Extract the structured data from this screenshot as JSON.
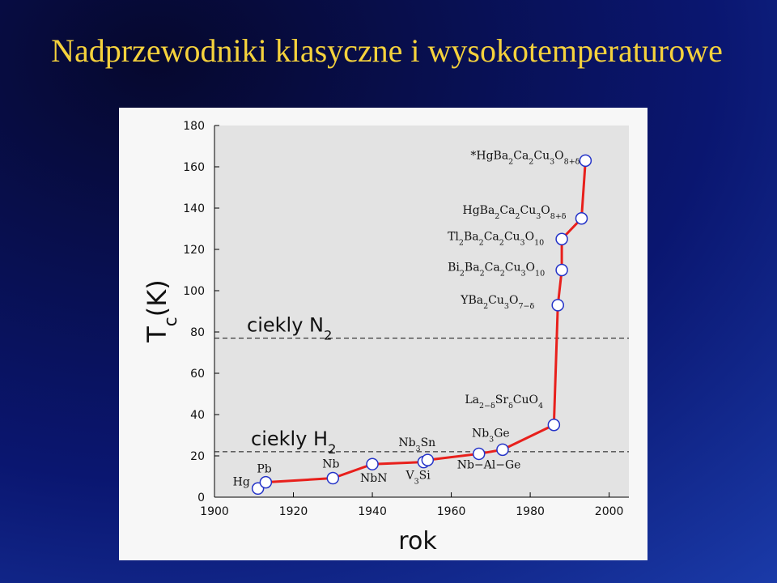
{
  "title": "Nadprzewodniki klasyczne i wysokotemperaturowe",
  "chart_data": {
    "type": "line",
    "x_label": "rok",
    "y_label": [
      "T",
      "c",
      "(K)"
    ],
    "xlim": [
      1900,
      2005
    ],
    "xticks": [
      1900,
      1920,
      1940,
      1960,
      1980,
      2000
    ],
    "ylim": [
      0,
      180
    ],
    "yticks": [
      0,
      20,
      40,
      60,
      80,
      100,
      120,
      140,
      160,
      180
    ],
    "series": [
      {
        "color": "#e8201c",
        "x": [
          1911,
          1913,
          1930,
          1940,
          1953,
          1954,
          1967,
          1973,
          1986,
          1987,
          1988,
          1988,
          1993,
          1994
        ],
        "values": [
          4.2,
          7.2,
          9.2,
          16,
          17,
          18,
          21,
          23,
          35,
          93,
          110,
          125,
          135,
          163
        ],
        "point_labels": [
          [
            "Hg"
          ],
          [
            "Pb"
          ],
          [
            "Nb"
          ],
          [
            "NbN"
          ],
          [
            "V",
            "3",
            "Si"
          ],
          [
            "Nb",
            "3",
            "Sn"
          ],
          [
            "Nb−Al−Ge"
          ],
          [
            "Nb",
            "3",
            "Ge"
          ],
          [
            "La",
            "2−δ",
            "Sr",
            "δ",
            "CuO",
            "4"
          ],
          [
            "YBa",
            "2",
            "Cu",
            "3",
            "O",
            "7−δ"
          ],
          [
            "Bi",
            "2",
            "Ba",
            "2",
            "Ca",
            "2",
            "Cu",
            "3",
            "O",
            "10"
          ],
          [
            "Tl",
            "2",
            "Ba",
            "2",
            "Ca",
            "2",
            "Cu",
            "3",
            "O",
            "10"
          ],
          [
            "HgBa",
            "2",
            "Ca",
            "2",
            "Cu",
            "3",
            "O",
            "8+δ"
          ],
          [
            "*HgBa",
            "2",
            "Ca",
            "2",
            "Cu",
            "3",
            "O",
            "8+δ"
          ]
        ]
      }
    ],
    "hlines": [
      {
        "value": 77,
        "label": [
          "ciekly N",
          "2"
        ]
      },
      {
        "value": 22,
        "label": [
          "ciekly H",
          "2"
        ]
      }
    ]
  }
}
